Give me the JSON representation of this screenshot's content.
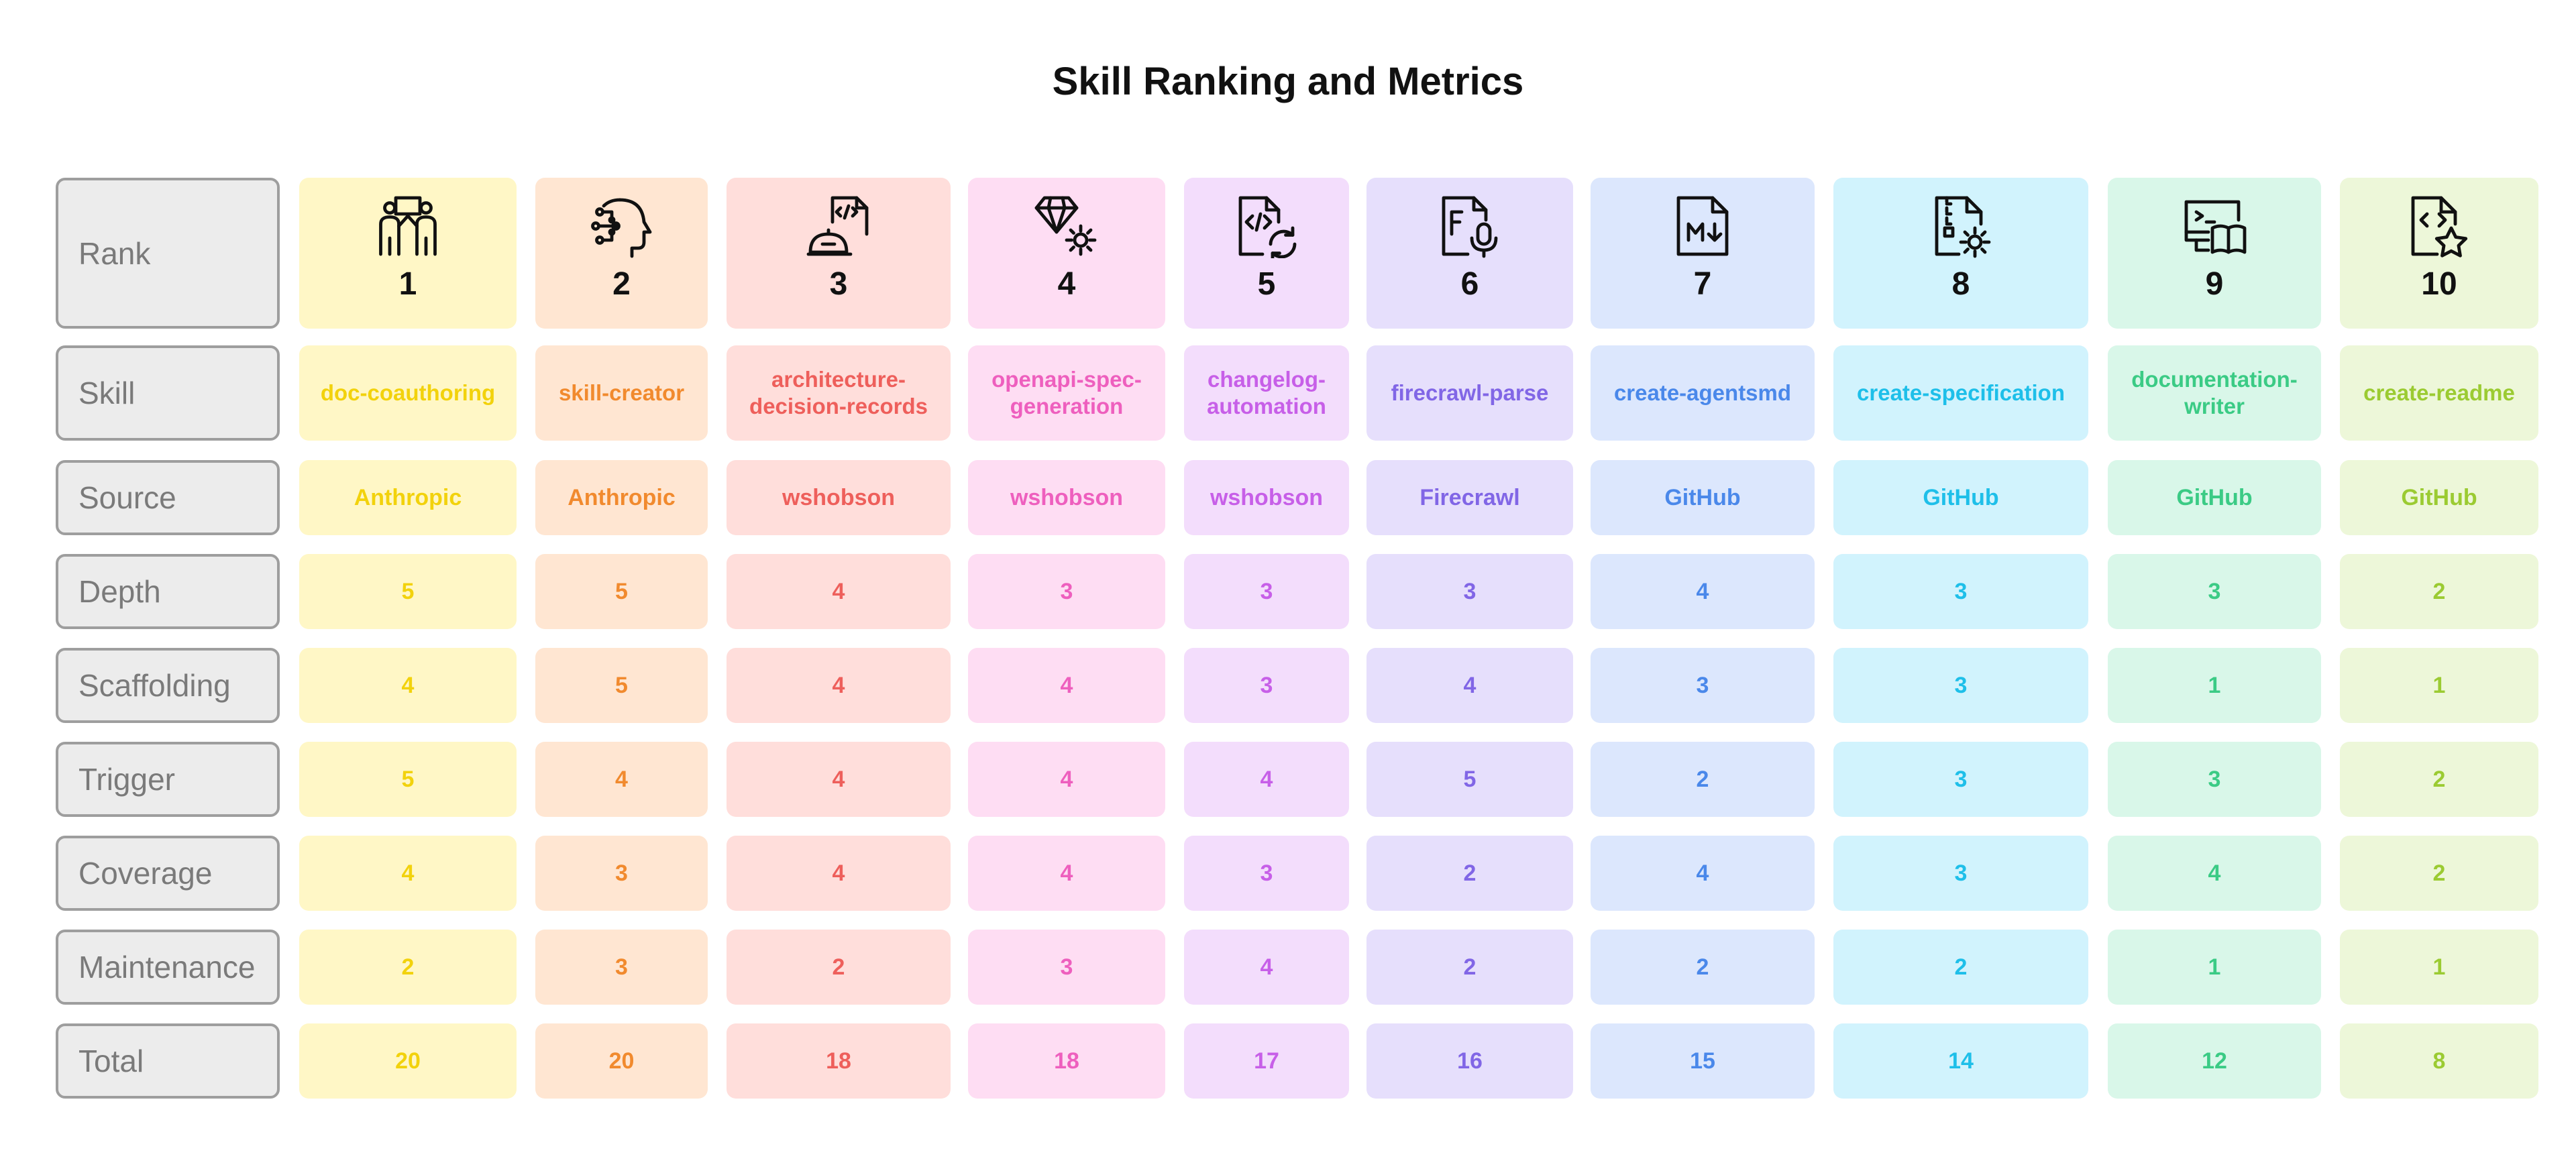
{
  "title": "Skill Ranking and Metrics",
  "chart_data": {
    "type": "table",
    "title": "Skill Ranking and Metrics",
    "row_labels": [
      "Rank",
      "Skill",
      "Source",
      "Depth",
      "Scaffolding",
      "Trigger",
      "Coverage",
      "Maintenance",
      "Total"
    ],
    "columns": [
      {
        "rank": "1",
        "skill": "doc-coauthoring",
        "source": "Anthropic",
        "depth": "5",
        "scaffolding": "4",
        "trigger": "5",
        "coverage": "4",
        "maintenance": "2",
        "total": "20",
        "icon": "presentation-people-icon",
        "text_color": "#F2D20C",
        "bg_color": "#FFF7C6"
      },
      {
        "rank": "2",
        "skill": "skill-creator",
        "source": "Anthropic",
        "depth": "5",
        "scaffolding": "5",
        "trigger": "4",
        "coverage": "3",
        "maintenance": "3",
        "total": "20",
        "icon": "ai-head-icon",
        "text_color": "#F18A2E",
        "bg_color": "#FFE6D2"
      },
      {
        "rank": "3",
        "skill": "architecture-decision-records",
        "source": "wshobson",
        "depth": "4",
        "scaffolding": "4",
        "trigger": "4",
        "coverage": "4",
        "maintenance": "2",
        "total": "18",
        "icon": "engineer-code-file-icon",
        "text_color": "#EE5F5B",
        "bg_color": "#FFDEDB"
      },
      {
        "rank": "4",
        "skill": "openapi-spec-generation",
        "source": "wshobson",
        "depth": "3",
        "scaffolding": "4",
        "trigger": "4",
        "coverage": "4",
        "maintenance": "3",
        "total": "18",
        "icon": "gem-gear-icon",
        "text_color": "#EE5FBE",
        "bg_color": "#FEDDF3"
      },
      {
        "rank": "5",
        "skill": "changelog-automation",
        "source": "wshobson",
        "depth": "3",
        "scaffolding": "3",
        "trigger": "4",
        "coverage": "3",
        "maintenance": "4",
        "total": "17",
        "icon": "code-sync-icon",
        "text_color": "#C75FE8",
        "bg_color": "#F3DDFC"
      },
      {
        "rank": "6",
        "skill": "firecrawl-parse",
        "source": "Firecrawl",
        "depth": "3",
        "scaffolding": "4",
        "trigger": "5",
        "coverage": "2",
        "maintenance": "2",
        "total": "16",
        "icon": "file-microphone-icon",
        "text_color": "#8166E6",
        "bg_color": "#E6DFFC"
      },
      {
        "rank": "7",
        "skill": "create-agentsmd",
        "source": "GitHub",
        "depth": "4",
        "scaffolding": "3",
        "trigger": "2",
        "coverage": "4",
        "maintenance": "2",
        "total": "15",
        "icon": "markdown-file-icon",
        "text_color": "#4A88EA",
        "bg_color": "#DCE7FD"
      },
      {
        "rank": "8",
        "skill": "create-specification",
        "source": "GitHub",
        "depth": "3",
        "scaffolding": "3",
        "trigger": "3",
        "coverage": "3",
        "maintenance": "2",
        "total": "14",
        "icon": "zip-file-gear-icon",
        "text_color": "#1EBFE9",
        "bg_color": "#D1F3FD"
      },
      {
        "rank": "9",
        "skill": "documentation-writer",
        "source": "GitHub",
        "depth": "3",
        "scaffolding": "1",
        "trigger": "3",
        "coverage": "4",
        "maintenance": "1",
        "total": "12",
        "icon": "monitor-book-icon",
        "text_color": "#3BCB85",
        "bg_color": "#D9F7E9"
      },
      {
        "rank": "10",
        "skill": "create-readme",
        "source": "GitHub",
        "depth": "2",
        "scaffolding": "1",
        "trigger": "2",
        "coverage": "2",
        "maintenance": "1",
        "total": "8",
        "icon": "code-file-star-icon",
        "text_color": "#9BCB32",
        "bg_color": "#EDF7D9"
      }
    ]
  }
}
